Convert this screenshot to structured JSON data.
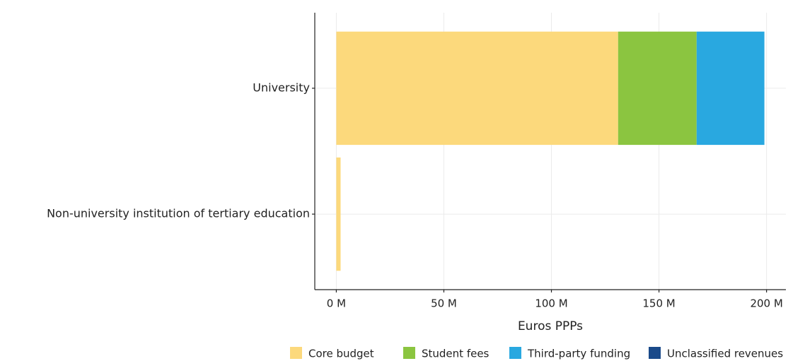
{
  "chart_data": {
    "type": "stacked_barh",
    "categories": [
      "Non-university institution of tertiary education",
      "University"
    ],
    "series": [
      {
        "name": "Core budget",
        "color": "#fcd97c",
        "values": [
          2,
          131
        ]
      },
      {
        "name": "Student fees",
        "color": "#8bc540",
        "values": [
          0,
          36.5
        ]
      },
      {
        "name": "Third-party funding",
        "color": "#29a8e0",
        "values": [
          0,
          31.5
        ]
      },
      {
        "name": "Unclassified revenues",
        "color": "#1a4a8a",
        "values": [
          0,
          0
        ]
      }
    ],
    "xlabel": "Euros PPPs",
    "xlim": [
      -10,
      209
    ],
    "xticks": [
      {
        "value": 0,
        "label": "0 M"
      },
      {
        "value": 50,
        "label": "50 M"
      },
      {
        "value": 100,
        "label": "100 M"
      },
      {
        "value": 150,
        "label": "150 M"
      },
      {
        "value": 200,
        "label": "200 M"
      }
    ],
    "grid": true,
    "legend": "bottom"
  }
}
